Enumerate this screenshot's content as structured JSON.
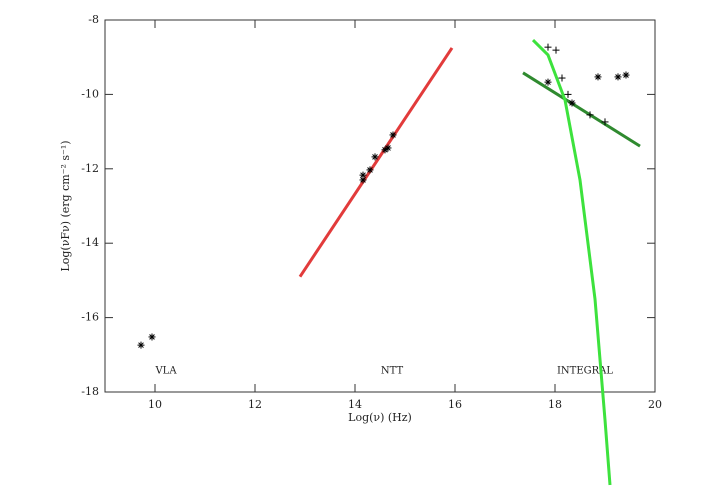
{
  "chart_data": {
    "type": "scatter",
    "xlabel": "Log(ν) (Hz)",
    "ylabel": "Log(νFν) (erg cm⁻² s⁻¹)",
    "xlim": [
      9,
      20
    ],
    "ylim": [
      -18,
      -8
    ],
    "xticks": [
      10,
      12,
      14,
      16,
      18,
      20
    ],
    "yticks": [
      -18,
      -16,
      -14,
      -12,
      -10,
      -8
    ],
    "grid": false,
    "annotations": [
      {
        "text": "VLA",
        "x": 10.22,
        "y": -17.43
      },
      {
        "text": "NTT",
        "x": 14.74,
        "y": -17.43
      },
      {
        "text": "INTEGRAL",
        "x": 18.6,
        "y": -17.43
      }
    ],
    "series": [
      {
        "type": "line",
        "color": "#e23b3b",
        "x": [
          12.9,
          15.94
        ],
        "y": [
          -14.9,
          -8.75
        ]
      },
      {
        "type": "line",
        "color": "#2f8a2f",
        "x": [
          17.36,
          19.7
        ],
        "y": [
          -9.42,
          -11.39
        ]
      },
      {
        "type": "line",
        "color": "#3de23d",
        "x": [
          17.56,
          17.86,
          18.2,
          18.5,
          18.8,
          19.0,
          19.1
        ],
        "y": [
          -8.54,
          -8.94,
          -10.15,
          -12.3,
          -15.5,
          -18.75,
          -20.5
        ]
      },
      {
        "type": "scatter",
        "marker": "asterisk",
        "color": "#000000",
        "x": [
          9.72,
          9.94,
          14.16,
          14.16,
          14.3,
          14.4,
          14.6,
          14.66,
          14.76,
          17.86,
          18.34,
          18.86,
          19.26,
          19.42
        ],
        "y": [
          -16.74,
          -16.52,
          -12.17,
          -12.3,
          -12.03,
          -11.68,
          -11.49,
          -11.44,
          -11.09,
          -9.67,
          -10.23,
          -9.53,
          -9.53,
          -9.48
        ]
      },
      {
        "type": "scatter",
        "marker": "plus",
        "color": "#000000",
        "x": [
          17.86,
          18.02,
          18.14,
          18.26,
          18.7,
          19.0
        ],
        "y": [
          -8.73,
          -8.81,
          -9.56,
          -10.0,
          -10.55,
          -10.74
        ]
      }
    ]
  }
}
